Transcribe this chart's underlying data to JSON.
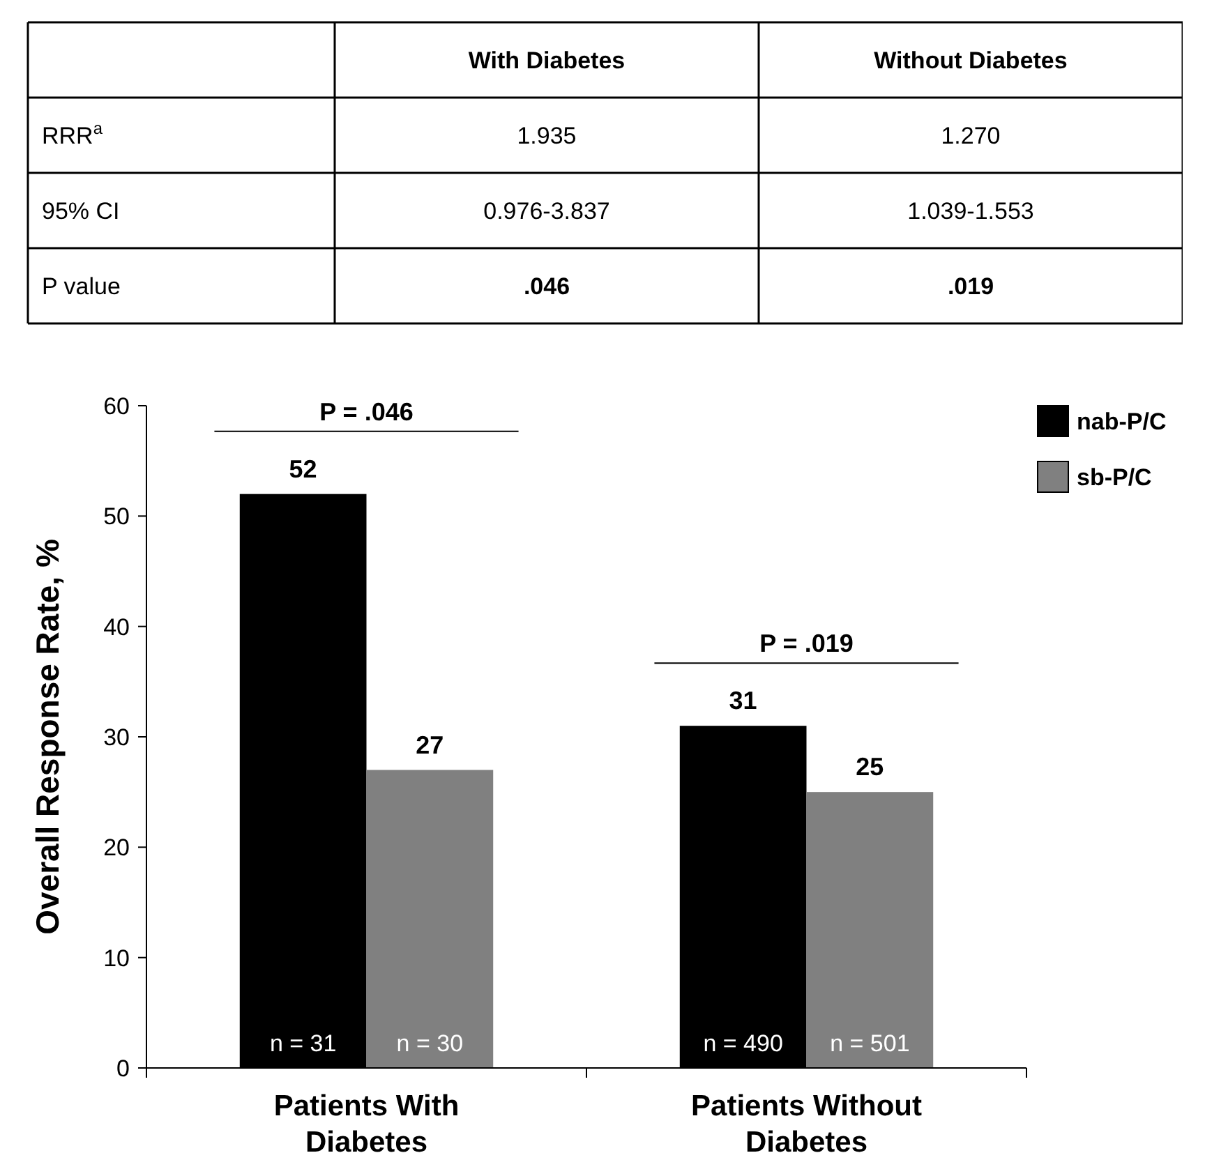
{
  "chart_data": [
    {
      "type": "other",
      "annotations": [
        "With Diabetes",
        "Without Diabetes",
        "RRR$^{a}$",
        "1.935",
        "1.270",
        "95% CI",
        "0.976-3.837",
        "1.039-1.553",
        "P value",
        ".046",
        ".019"
      ]
    },
    {
      "type": "bar",
      "ylabel": "Overall Response Rate, %",
      "categories": [
        "Patients With Diabetes",
        "Patients Without Diabetes"
      ],
      "series": [
        {
          "name": "nab-P/C",
          "color": "#000000",
          "values": [
            52,
            31
          ]
        },
        {
          "name": "sb-P/C",
          "color": "#808080",
          "values": [
            27,
            25
          ]
        }
      ],
      "ylim": [
        0,
        60
      ],
      "yticks": [
        0,
        10,
        20,
        30,
        40,
        50,
        60
      ],
      "data_labels": true,
      "legend": "top right",
      "grid": false,
      "annotations": [
        "P = .046",
        "P = .019",
        "n = 31",
        "n = 30",
        "n = 490",
        "n = 501"
      ]
    }
  ]
}
